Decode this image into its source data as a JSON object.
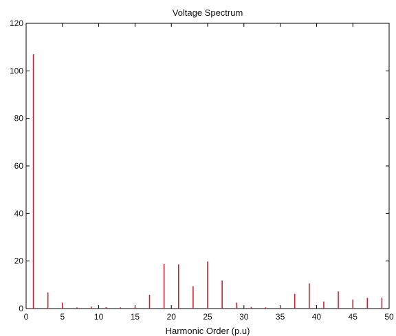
{
  "chart_data": {
    "type": "bar",
    "style": "stem",
    "title": "Voltage Spectrum",
    "xlabel": "Harmonic Order (p.u)",
    "ylabel": "",
    "xlim": [
      0,
      50
    ],
    "ylim": [
      0,
      120
    ],
    "xticks": [
      0,
      5,
      10,
      15,
      20,
      25,
      30,
      35,
      40,
      45,
      50
    ],
    "yticks": [
      0,
      20,
      40,
      60,
      80,
      100,
      120
    ],
    "grid": false,
    "bar_color": "#cc2233",
    "x": [
      1,
      3,
      5,
      7,
      9,
      11,
      13,
      15,
      17,
      19,
      21,
      23,
      25,
      27,
      29,
      31,
      33,
      35,
      37,
      39,
      41,
      43,
      45,
      47,
      49
    ],
    "values": [
      107,
      6.8,
      2.5,
      0.5,
      0.8,
      0.6,
      0.5,
      0.6,
      5.8,
      18.8,
      18.6,
      9.4,
      19.8,
      11.8,
      2.5,
      0.7,
      0.5,
      0.3,
      6.2,
      10.6,
      3.0,
      7.2,
      3.8,
      4.5,
      4.6
    ]
  }
}
